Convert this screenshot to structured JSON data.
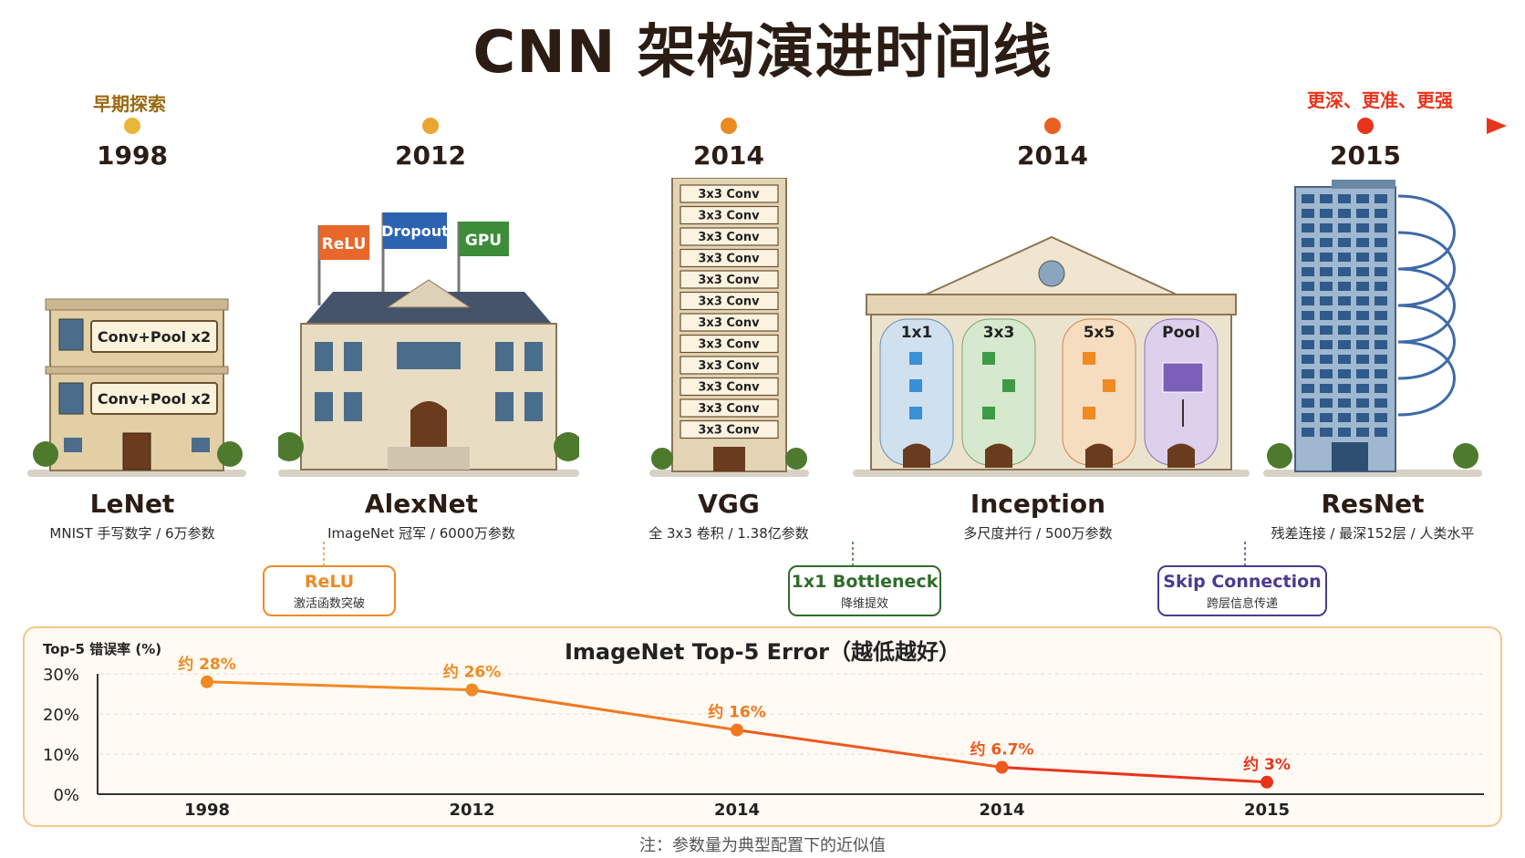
{
  "title": "CNN 架构演进时间线",
  "timeline": {
    "start_label": "早期探索",
    "end_label": "更深、更准、更强",
    "colors": {
      "start": "#e9b63a",
      "end": "#e8341c"
    }
  },
  "models": [
    {
      "year": "1998",
      "name": "LeNet",
      "desc": "MNIST 手写数字 / 6万参数",
      "color": "#e6b33a",
      "labels": [
        "Conv+Pool x2",
        "Conv+Pool x2"
      ]
    },
    {
      "year": "2012",
      "name": "AlexNet",
      "desc": "ImageNet 冠军 / 6000万参数",
      "color": "#e9a630",
      "flags": [
        "ReLU",
        "Dropout",
        "GPU"
      ]
    },
    {
      "year": "2014",
      "name": "VGG",
      "desc": "全 3x3 卷积 / 1.38亿参数",
      "color": "#e98a22",
      "labels": [
        "3x3 Conv",
        "3x3 Conv",
        "3x3 Conv",
        "3x3 Conv",
        "3x3 Conv",
        "3x3 Conv",
        "3x3 Conv",
        "3x3 Conv",
        "3x3 Conv",
        "3x3 Conv",
        "3x3 Conv",
        "3x3 Conv"
      ]
    },
    {
      "year": "2014",
      "name": "Inception",
      "desc": "多尺度并行 / 500万参数",
      "color": "#e8601f",
      "labels": [
        "1x1",
        "3x3",
        "5x5",
        "Pool"
      ]
    },
    {
      "year": "2015",
      "name": "ResNet",
      "desc": "残差连接 / 最深152层 / 人类水平",
      "color": "#e8341c"
    }
  ],
  "callouts": [
    {
      "title": "ReLU",
      "sub": "激活函数突破",
      "color": "#f08a24"
    },
    {
      "title": "1x1 Bottleneck",
      "sub": "降维提效",
      "color": "#2f6b2a"
    },
    {
      "title": "Skip Connection",
      "sub": "跨层信息传递",
      "color": "#4b3a8f"
    }
  ],
  "chart_data": {
    "type": "line",
    "title": "ImageNet Top-5 Error（越低越好）",
    "ylabel": "Top-5 错误率 (%)",
    "xlabel": "",
    "categories": [
      "1998",
      "2012",
      "2014",
      "2014",
      "2015"
    ],
    "values": [
      28,
      26,
      16,
      6.7,
      3
    ],
    "data_labels": [
      "约 28%",
      "约 26%",
      "约 16%",
      "约 6.7%",
      "约 3%"
    ],
    "y_ticks": [
      "30%",
      "20%",
      "10%",
      "0%"
    ],
    "ylim": [
      0,
      30
    ],
    "grid": true,
    "point_colors": [
      "#f08a24",
      "#f08a24",
      "#f0781f",
      "#ec5a1e",
      "#e8341c"
    ]
  },
  "note": "注：参数量为典型配置下的近似值"
}
